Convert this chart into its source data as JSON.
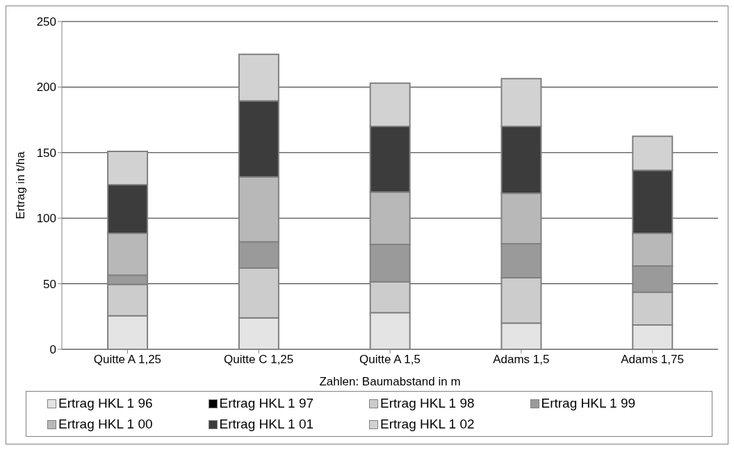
{
  "chart_data": {
    "type": "bar",
    "stacked": true,
    "ylabel": "Ertrag in t/ha",
    "xlabel": "Zahlen: Baumabstand in m",
    "categories": [
      "Quitte A 1,25",
      "Quitte C 1,25",
      "Quitte A 1,5",
      "Adams 1,5",
      "Adams 1,75"
    ],
    "series": [
      {
        "name": "Ertrag HKL 1 96",
        "color": "#e4e4e4",
        "values": [
          25.5,
          24,
          28,
          20,
          18.5
        ]
      },
      {
        "name": "Ertrag HKL 1 97",
        "color": "#000000",
        "values": [
          0,
          0,
          0,
          0,
          0
        ]
      },
      {
        "name": "Ertrag HKL 1 98",
        "color": "#cccccc",
        "values": [
          24,
          38,
          23.5,
          34.5,
          25
        ]
      },
      {
        "name": "Ertrag HKL 1 99",
        "color": "#9a9a9a",
        "values": [
          7,
          20,
          28.5,
          26,
          20
        ]
      },
      {
        "name": "Ertrag HKL 1 00",
        "color": "#b8b8b8",
        "values": [
          32,
          49.5,
          40,
          38.5,
          25
        ]
      },
      {
        "name": "Ertrag HKL 1 01",
        "color": "#3c3c3c",
        "values": [
          37,
          58,
          50,
          51,
          48
        ]
      },
      {
        "name": "Ertrag HKL 1 02",
        "color": "#d2d2d2",
        "values": [
          25.5,
          35.5,
          33,
          36.5,
          26
        ]
      }
    ],
    "ylim": [
      0,
      250
    ],
    "yticks": [
      0,
      50,
      100,
      150,
      200,
      250
    ],
    "grid": "y",
    "legend": "bottom"
  }
}
